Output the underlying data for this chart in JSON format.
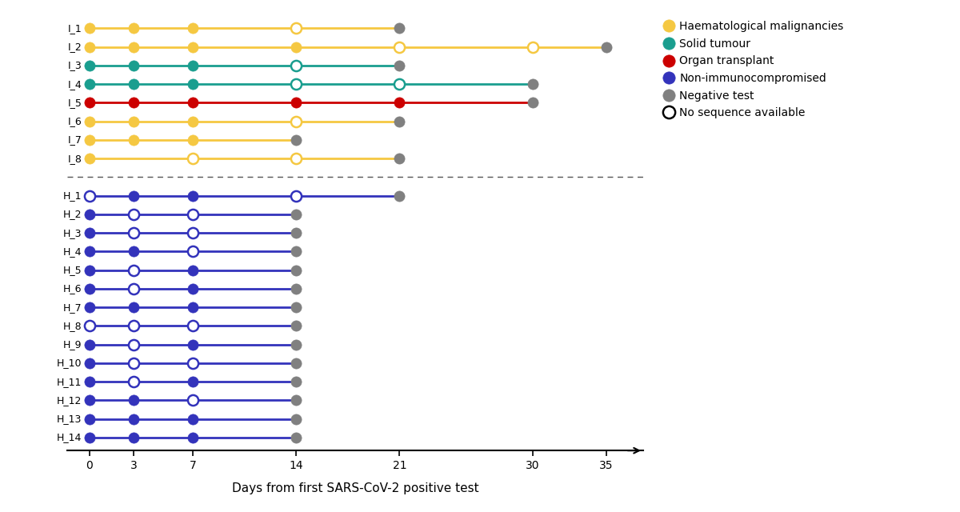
{
  "immunocompromised": [
    {
      "label": "I_1",
      "line_color": "#F5C842",
      "points": [
        {
          "x": 0,
          "type": "filled"
        },
        {
          "x": 3,
          "type": "filled"
        },
        {
          "x": 7,
          "type": "filled"
        },
        {
          "x": 14,
          "type": "open"
        },
        {
          "x": 21,
          "type": "gray"
        }
      ]
    },
    {
      "label": "I_2",
      "line_color": "#F5C842",
      "points": [
        {
          "x": 0,
          "type": "filled"
        },
        {
          "x": 3,
          "type": "filled"
        },
        {
          "x": 7,
          "type": "filled"
        },
        {
          "x": 14,
          "type": "filled"
        },
        {
          "x": 21,
          "type": "open"
        },
        {
          "x": 30,
          "type": "open"
        },
        {
          "x": 35,
          "type": "gray"
        }
      ]
    },
    {
      "label": "I_3",
      "line_color": "#1A9E8F",
      "points": [
        {
          "x": 0,
          "type": "filled"
        },
        {
          "x": 3,
          "type": "filled"
        },
        {
          "x": 7,
          "type": "filled"
        },
        {
          "x": 14,
          "type": "open"
        },
        {
          "x": 21,
          "type": "gray"
        }
      ]
    },
    {
      "label": "I_4",
      "line_color": "#1A9E8F",
      "points": [
        {
          "x": 0,
          "type": "filled"
        },
        {
          "x": 3,
          "type": "filled"
        },
        {
          "x": 7,
          "type": "filled"
        },
        {
          "x": 14,
          "type": "open"
        },
        {
          "x": 21,
          "type": "open"
        },
        {
          "x": 30,
          "type": "gray"
        }
      ]
    },
    {
      "label": "I_5",
      "line_color": "#CC0000",
      "points": [
        {
          "x": 0,
          "type": "filled"
        },
        {
          "x": 3,
          "type": "filled"
        },
        {
          "x": 7,
          "type": "filled"
        },
        {
          "x": 14,
          "type": "filled"
        },
        {
          "x": 21,
          "type": "filled"
        },
        {
          "x": 30,
          "type": "gray"
        }
      ]
    },
    {
      "label": "I_6",
      "line_color": "#F5C842",
      "points": [
        {
          "x": 0,
          "type": "filled"
        },
        {
          "x": 3,
          "type": "filled"
        },
        {
          "x": 7,
          "type": "filled"
        },
        {
          "x": 14,
          "type": "open"
        },
        {
          "x": 21,
          "type": "gray"
        }
      ]
    },
    {
      "label": "I_7",
      "line_color": "#F5C842",
      "points": [
        {
          "x": 0,
          "type": "filled"
        },
        {
          "x": 3,
          "type": "filled"
        },
        {
          "x": 7,
          "type": "filled"
        },
        {
          "x": 14,
          "type": "gray"
        }
      ]
    },
    {
      "label": "I_8",
      "line_color": "#F5C842",
      "points": [
        {
          "x": 0,
          "type": "filled"
        },
        {
          "x": 7,
          "type": "open"
        },
        {
          "x": 14,
          "type": "open"
        },
        {
          "x": 21,
          "type": "gray"
        }
      ]
    }
  ],
  "healthy": [
    {
      "label": "H_1",
      "line_color": "#3333BB",
      "points": [
        {
          "x": 0,
          "type": "open"
        },
        {
          "x": 3,
          "type": "filled"
        },
        {
          "x": 7,
          "type": "filled"
        },
        {
          "x": 14,
          "type": "open"
        },
        {
          "x": 21,
          "type": "gray"
        }
      ]
    },
    {
      "label": "H_2",
      "line_color": "#3333BB",
      "points": [
        {
          "x": 0,
          "type": "filled"
        },
        {
          "x": 3,
          "type": "open"
        },
        {
          "x": 7,
          "type": "open"
        },
        {
          "x": 14,
          "type": "gray"
        }
      ]
    },
    {
      "label": "H_3",
      "line_color": "#3333BB",
      "points": [
        {
          "x": 0,
          "type": "filled"
        },
        {
          "x": 3,
          "type": "open"
        },
        {
          "x": 7,
          "type": "open"
        },
        {
          "x": 14,
          "type": "gray"
        }
      ]
    },
    {
      "label": "H_4",
      "line_color": "#3333BB",
      "points": [
        {
          "x": 0,
          "type": "filled"
        },
        {
          "x": 3,
          "type": "filled"
        },
        {
          "x": 7,
          "type": "open"
        },
        {
          "x": 14,
          "type": "gray"
        }
      ]
    },
    {
      "label": "H_5",
      "line_color": "#3333BB",
      "points": [
        {
          "x": 0,
          "type": "filled"
        },
        {
          "x": 3,
          "type": "open"
        },
        {
          "x": 7,
          "type": "filled"
        },
        {
          "x": 14,
          "type": "gray"
        }
      ]
    },
    {
      "label": "H_6",
      "line_color": "#3333BB",
      "points": [
        {
          "x": 0,
          "type": "filled"
        },
        {
          "x": 3,
          "type": "open"
        },
        {
          "x": 7,
          "type": "filled"
        },
        {
          "x": 14,
          "type": "gray"
        }
      ]
    },
    {
      "label": "H_7",
      "line_color": "#3333BB",
      "points": [
        {
          "x": 0,
          "type": "filled"
        },
        {
          "x": 3,
          "type": "filled"
        },
        {
          "x": 7,
          "type": "filled"
        },
        {
          "x": 14,
          "type": "gray"
        }
      ]
    },
    {
      "label": "H_8",
      "line_color": "#3333BB",
      "points": [
        {
          "x": 0,
          "type": "open"
        },
        {
          "x": 3,
          "type": "open"
        },
        {
          "x": 7,
          "type": "open"
        },
        {
          "x": 14,
          "type": "gray"
        }
      ]
    },
    {
      "label": "H_9",
      "line_color": "#3333BB",
      "points": [
        {
          "x": 0,
          "type": "filled"
        },
        {
          "x": 3,
          "type": "open"
        },
        {
          "x": 7,
          "type": "filled"
        },
        {
          "x": 14,
          "type": "gray"
        }
      ]
    },
    {
      "label": "H_10",
      "line_color": "#3333BB",
      "points": [
        {
          "x": 0,
          "type": "filled"
        },
        {
          "x": 3,
          "type": "open"
        },
        {
          "x": 7,
          "type": "open"
        },
        {
          "x": 14,
          "type": "gray"
        }
      ]
    },
    {
      "label": "H_11",
      "line_color": "#3333BB",
      "points": [
        {
          "x": 0,
          "type": "filled"
        },
        {
          "x": 3,
          "type": "open"
        },
        {
          "x": 7,
          "type": "filled"
        },
        {
          "x": 14,
          "type": "gray"
        }
      ]
    },
    {
      "label": "H_12",
      "line_color": "#3333BB",
      "points": [
        {
          "x": 0,
          "type": "filled"
        },
        {
          "x": 3,
          "type": "filled"
        },
        {
          "x": 7,
          "type": "open"
        },
        {
          "x": 14,
          "type": "gray"
        }
      ]
    },
    {
      "label": "H_13",
      "line_color": "#3333BB",
      "points": [
        {
          "x": 0,
          "type": "filled"
        },
        {
          "x": 3,
          "type": "filled"
        },
        {
          "x": 7,
          "type": "filled"
        },
        {
          "x": 14,
          "type": "gray"
        }
      ]
    },
    {
      "label": "H_14",
      "line_color": "#3333BB",
      "points": [
        {
          "x": 0,
          "type": "filled"
        },
        {
          "x": 3,
          "type": "filled"
        },
        {
          "x": 7,
          "type": "filled"
        },
        {
          "x": 14,
          "type": "gray"
        }
      ]
    }
  ],
  "colors": {
    "haematological": "#F5C842",
    "solid_tumour": "#1A9E8F",
    "organ_transplant": "#CC0000",
    "non_immunocompromised": "#3333BB",
    "negative_test": "#808080",
    "open_edge_immuno_yellow": "#F5C842",
    "open_edge_immuno_teal": "#1A9E8F",
    "open_edge_immuno_red": "#CC0000",
    "open_edge_healthy": "#3333BB"
  },
  "immuno_row_colors": [
    "#F5C842",
    "#F5C842",
    "#1A9E8F",
    "#1A9E8F",
    "#CC0000",
    "#F5C842",
    "#F5C842",
    "#F5C842"
  ],
  "xlabel": "Days from first SARS-CoV-2 positive test",
  "xticks": [
    0,
    3,
    7,
    14,
    21,
    30,
    35
  ],
  "xmax": 37.5,
  "marker_size": 90,
  "line_width": 2.0,
  "legend_labels": [
    "Haematological malignancies",
    "Solid tumour",
    "Organ transplant",
    "Non-immunocompromised",
    "Negative test",
    "No sequence available"
  ],
  "legend_colors": [
    "#F5C842",
    "#1A9E8F",
    "#CC0000",
    "#3333BB",
    "#808080",
    "#ffffff"
  ],
  "legend_edge_colors": [
    "#F5C842",
    "#1A9E8F",
    "#CC0000",
    "#3333BB",
    "#808080",
    "#000000"
  ]
}
